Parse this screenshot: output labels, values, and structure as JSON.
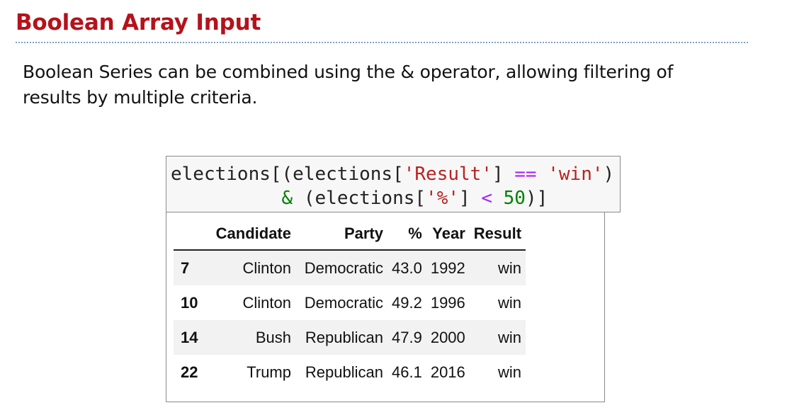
{
  "slide": {
    "title": "Boolean Array Input",
    "body": "Boolean Series can be combined using the & operator, allowing filtering of results by multiple criteria."
  },
  "code": {
    "line1": [
      {
        "t": "elections[(elections[",
        "k": "plain"
      },
      {
        "t": "'Result'",
        "k": "str"
      },
      {
        "t": "] ",
        "k": "plain"
      },
      {
        "t": "==",
        "k": "op"
      },
      {
        "t": " ",
        "k": "plain"
      },
      {
        "t": "'win'",
        "k": "str"
      },
      {
        "t": ")",
        "k": "plain"
      }
    ],
    "line2": [
      {
        "t": "          ",
        "k": "plain"
      },
      {
        "t": "&",
        "k": "amp"
      },
      {
        "t": " (elections[",
        "k": "plain"
      },
      {
        "t": "'%'",
        "k": "str"
      },
      {
        "t": "] ",
        "k": "plain"
      },
      {
        "t": "<",
        "k": "op"
      },
      {
        "t": " ",
        "k": "plain"
      },
      {
        "t": "50",
        "k": "num"
      },
      {
        "t": ")]",
        "k": "plain"
      }
    ]
  },
  "table": {
    "columns": [
      "",
      "Candidate",
      "Party",
      "%",
      "Year",
      "Result"
    ],
    "rows": [
      {
        "index": "7",
        "cells": [
          "Clinton",
          "Democratic",
          "43.0",
          "1992",
          "win"
        ]
      },
      {
        "index": "10",
        "cells": [
          "Clinton",
          "Democratic",
          "49.2",
          "1996",
          "win"
        ]
      },
      {
        "index": "14",
        "cells": [
          "Bush",
          "Republican",
          "47.9",
          "2000",
          "win"
        ]
      },
      {
        "index": "22",
        "cells": [
          "Trump",
          "Republican",
          "46.1",
          "2016",
          "win"
        ]
      }
    ]
  },
  "colors": {
    "title": "#b5121b",
    "rule": "#7f9fc6",
    "string": "#ba2121",
    "operator": "#aa22ff",
    "number": "#008000"
  }
}
